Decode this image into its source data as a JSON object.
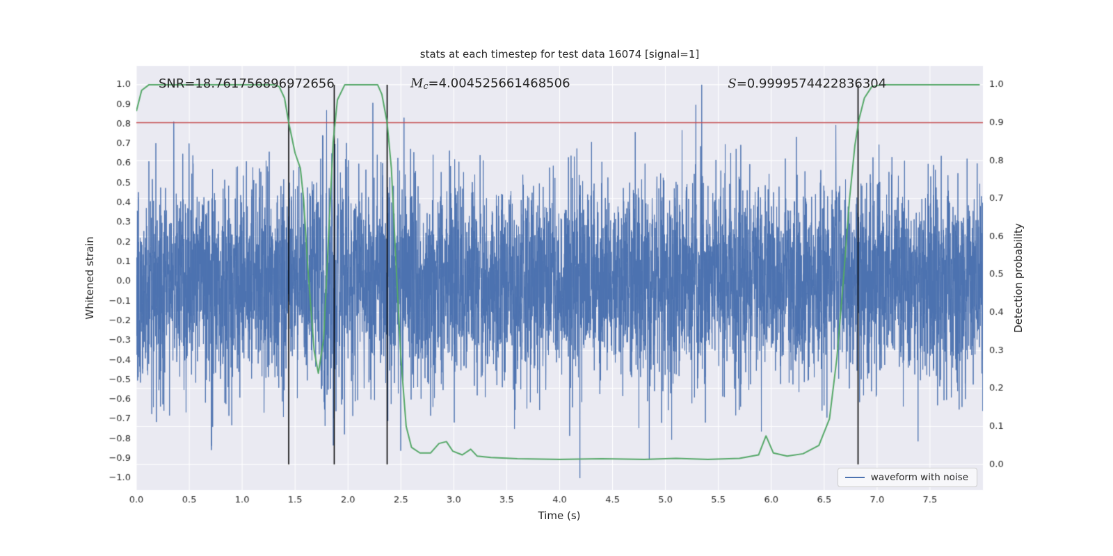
{
  "figure": {
    "background": "#ffffff",
    "axes_background": "#eaeaf2",
    "grid_color": "#ffffff",
    "text_color": "#262626",
    "tick_color": "#262626"
  },
  "chart_data": {
    "type": "line",
    "title": "stats at each timestep for test data 16074 [signal=1]",
    "xlabel": "Time (s)",
    "ylabel_left": "Whitened strain",
    "ylabel_right": "Detection probability",
    "xlim": [
      0,
      8
    ],
    "ylim_left": [
      -1.06,
      1.095
    ],
    "ylim_right": [
      -0.0674,
      1.0492
    ],
    "grid": {
      "vertical_from": "x_ticks",
      "horizontal_from": "right_ticks",
      "on": true
    },
    "x_ticks": {
      "values": [
        0.0,
        0.5,
        1.0,
        1.5,
        2.0,
        2.5,
        3.0,
        3.5,
        4.0,
        4.5,
        5.0,
        5.5,
        6.0,
        6.5,
        7.0,
        7.5
      ],
      "labels": [
        "0.0",
        "0.5",
        "1.0",
        "1.5",
        "2.0",
        "2.5",
        "3.0",
        "3.5",
        "4.0",
        "4.5",
        "5.0",
        "5.5",
        "6.0",
        "6.5",
        "7.0",
        "7.5"
      ]
    },
    "left_ticks": {
      "values": [
        1.0,
        0.9,
        0.8,
        0.7,
        0.6,
        0.5,
        0.4,
        0.3,
        0.2,
        0.1,
        0.0,
        -0.1,
        -0.2,
        -0.3,
        -0.4,
        -0.5,
        -0.6,
        -0.7,
        -0.8,
        -0.9,
        -1.0
      ],
      "labels": [
        "1.0",
        "0.9",
        "0.8",
        "0.7",
        "0.6",
        "0.5",
        "0.4",
        "0.3",
        "0.2",
        "0.1",
        "0.0",
        "−0.1",
        "−0.2",
        "−0.3",
        "−0.4",
        "−0.5",
        "−0.6",
        "−0.7",
        "−0.8",
        "−0.9",
        "−1.0"
      ]
    },
    "right_ticks": {
      "values": [
        1.0,
        0.9,
        0.8,
        0.7,
        0.6,
        0.5,
        0.4,
        0.3,
        0.2,
        0.1,
        0.0
      ],
      "labels": [
        "1.0",
        "0.9",
        "0.8",
        "0.7",
        "0.6",
        "0.5",
        "0.4",
        "0.3",
        "0.2",
        "0.1",
        "0.0"
      ]
    },
    "series": [
      {
        "name": "waveform with noise",
        "axis": "left",
        "color": "#4c72b0",
        "kind": "gaussian-noise",
        "generator": {
          "seed": 20231,
          "n": 6200,
          "std": 0.25,
          "clip": 1.0,
          "t_start": 0,
          "t_end": 8,
          "chirp": {
            "t0": 1.45,
            "t1": 2.37,
            "amp": 0.25,
            "f0": 25,
            "k": 14
          }
        }
      },
      {
        "name": "detection probability",
        "axis": "right",
        "color": "#55a868",
        "kind": "line",
        "points": [
          [
            0.0,
            0.93
          ],
          [
            0.05,
            0.985
          ],
          [
            0.12,
            1.0
          ],
          [
            0.5,
            1.0
          ],
          [
            1.0,
            1.0
          ],
          [
            1.3,
            1.0
          ],
          [
            1.35,
            0.995
          ],
          [
            1.4,
            0.965
          ],
          [
            1.44,
            0.9
          ],
          [
            1.5,
            0.82
          ],
          [
            1.55,
            0.78
          ],
          [
            1.58,
            0.7
          ],
          [
            1.62,
            0.52
          ],
          [
            1.68,
            0.3
          ],
          [
            1.72,
            0.24
          ],
          [
            1.77,
            0.33
          ],
          [
            1.82,
            0.62
          ],
          [
            1.86,
            0.85
          ],
          [
            1.9,
            0.96
          ],
          [
            1.97,
            1.0
          ],
          [
            2.1,
            1.0
          ],
          [
            2.28,
            1.0
          ],
          [
            2.32,
            0.975
          ],
          [
            2.37,
            0.9
          ],
          [
            2.41,
            0.78
          ],
          [
            2.45,
            0.55
          ],
          [
            2.5,
            0.28
          ],
          [
            2.55,
            0.1
          ],
          [
            2.6,
            0.045
          ],
          [
            2.68,
            0.03
          ],
          [
            2.78,
            0.03
          ],
          [
            2.86,
            0.055
          ],
          [
            2.93,
            0.06
          ],
          [
            2.99,
            0.035
          ],
          [
            3.08,
            0.025
          ],
          [
            3.16,
            0.04
          ],
          [
            3.22,
            0.022
          ],
          [
            3.35,
            0.018
          ],
          [
            3.6,
            0.015
          ],
          [
            4.0,
            0.013
          ],
          [
            4.4,
            0.015
          ],
          [
            4.8,
            0.013
          ],
          [
            5.1,
            0.016
          ],
          [
            5.4,
            0.013
          ],
          [
            5.7,
            0.016
          ],
          [
            5.88,
            0.025
          ],
          [
            5.95,
            0.075
          ],
          [
            6.02,
            0.03
          ],
          [
            6.15,
            0.022
          ],
          [
            6.3,
            0.028
          ],
          [
            6.45,
            0.05
          ],
          [
            6.55,
            0.12
          ],
          [
            6.62,
            0.28
          ],
          [
            6.68,
            0.48
          ],
          [
            6.74,
            0.7
          ],
          [
            6.79,
            0.84
          ],
          [
            6.83,
            0.91
          ],
          [
            6.88,
            0.965
          ],
          [
            6.95,
            0.995
          ],
          [
            7.05,
            1.0
          ],
          [
            7.5,
            1.0
          ],
          [
            7.97,
            1.0
          ]
        ]
      }
    ],
    "threshold_line": {
      "axis": "right",
      "value": 0.9,
      "color": "#c44e52"
    },
    "event_vlines": {
      "x": [
        1.44,
        1.87,
        2.37,
        6.82
      ],
      "color": "#000000",
      "span_prob": [
        0,
        1
      ]
    },
    "annotations": [
      {
        "label": "SNR",
        "italic": false,
        "sub": "",
        "value": "=18.761756896972656",
        "x": 0.21,
        "y": 1.0
      },
      {
        "label": "M",
        "italic": true,
        "sub": "c",
        "value": "=4.004525661468506",
        "x": 2.59,
        "y": 1.0
      },
      {
        "label": "S",
        "italic": true,
        "sub": "",
        "value": "=0.9999574422836304",
        "x": 5.59,
        "y": 1.0
      }
    ],
    "legend": {
      "position": "lower right",
      "entries": [
        {
          "label": "waveform with noise",
          "color": "#4c72b0"
        }
      ]
    }
  }
}
